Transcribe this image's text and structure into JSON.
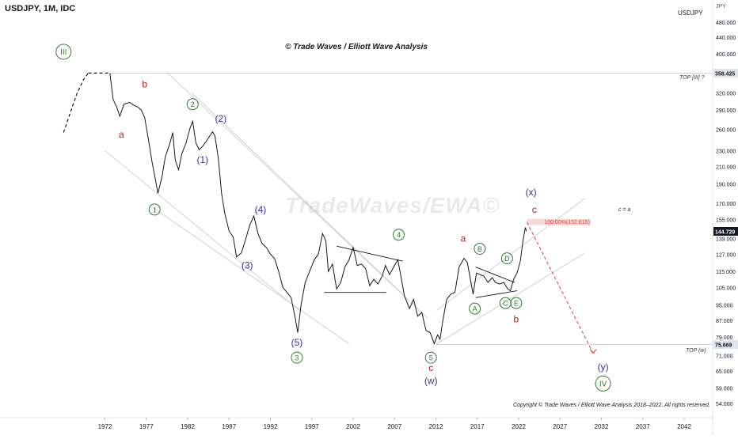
{
  "header": {
    "symbol": "USDJPY, 1M, IDC",
    "currency_short": "USDJPY",
    "currency_unit": "JPY",
    "title": "© Trade Waves / Elliott Wave Analysis",
    "watermark": "TradeWaves/EWA©",
    "copyright": "Copyright © Trade Waves / Elliott Wave Analysis 2018–2022. All rights reserved."
  },
  "annotations": {
    "top_iii": "TOP [III] ?",
    "top_w": "TOP (w)",
    "c_eq_a": "c = a",
    "fib_label": "100.00%(152.615)"
  },
  "chart_data": {
    "type": "line",
    "y_scale": "log",
    "ylim": [
      51,
      520
    ],
    "xlim": [
      1967.0,
      2047.0
    ],
    "x_ticks": [
      "1972",
      "1977",
      "1982",
      "1987",
      "1992",
      "1997",
      "2002",
      "2007",
      "2012",
      "2017",
      "2022",
      "2027",
      "2032",
      "2037",
      "2042"
    ],
    "y_ticks": [
      "480.000",
      "440.000",
      "400.000",
      "358.425",
      "320.000",
      "290.000",
      "260.000",
      "230.000",
      "210.000",
      "190.000",
      "170.000",
      "155.000",
      "144.729",
      "139.000",
      "127.000",
      "115.000",
      "105.000",
      "95.000",
      "87.000",
      "79.000",
      "75.669",
      "71.000",
      "65.000",
      "59.000",
      "54.000"
    ],
    "price_labels": [
      {
        "value": "358.425",
        "y": 358.425,
        "bg": "#e0e3eb",
        "fg": "#131722"
      },
      {
        "value": "144.729",
        "y": 144.729,
        "bg": "#131722",
        "fg": "#ffffff"
      },
      {
        "value": "75.669",
        "y": 75.669,
        "bg": "#e0e3eb",
        "fg": "#131722"
      }
    ],
    "series": [
      {
        "points": [
          [
            1967.0,
            255
          ],
          [
            1967.8,
            285
          ],
          [
            1968.6,
            318
          ],
          [
            1969.4,
            345
          ],
          [
            1970.0,
            358.425
          ]
        ],
        "style": "dashed"
      },
      {
        "points": [
          [
            1970.0,
            358.425
          ],
          [
            1972.6,
            358.425
          ]
        ],
        "style": "dashed-flat"
      },
      {
        "points": [
          [
            1972.6,
            358.425
          ],
          [
            1973.0,
            308
          ],
          [
            1973.4,
            296
          ],
          [
            1973.8,
            280
          ],
          [
            1974.3,
            300
          ],
          [
            1975.0,
            303
          ],
          [
            1975.5,
            298
          ],
          [
            1976.0,
            295
          ],
          [
            1976.4,
            290
          ],
          [
            1976.8,
            278
          ],
          [
            1977.3,
            242
          ],
          [
            1977.7,
            215
          ],
          [
            1978.1,
            195
          ],
          [
            1978.4,
            180
          ],
          [
            1978.9,
            198
          ],
          [
            1979.3,
            222
          ],
          [
            1979.8,
            238
          ],
          [
            1980.2,
            255
          ],
          [
            1980.5,
            218
          ],
          [
            1980.9,
            206
          ],
          [
            1981.3,
            226
          ],
          [
            1981.8,
            240
          ],
          [
            1982.3,
            262
          ],
          [
            1982.6,
            272
          ],
          [
            1983.0,
            240
          ],
          [
            1983.4,
            231
          ],
          [
            1983.9,
            237
          ],
          [
            1984.5,
            247
          ],
          [
            1985.0,
            256
          ],
          [
            1985.3,
            250
          ],
          [
            1985.7,
            220
          ],
          [
            1986.1,
            180
          ],
          [
            1986.5,
            160
          ],
          [
            1987.0,
            145
          ],
          [
            1987.5,
            140
          ],
          [
            1987.9,
            125
          ],
          [
            1988.5,
            128
          ],
          [
            1989.0,
            138
          ],
          [
            1989.5,
            150
          ],
          [
            1990.0,
            158
          ],
          [
            1990.5,
            143
          ],
          [
            1991.0,
            135
          ],
          [
            1991.5,
            132
          ],
          [
            1992.0,
            127
          ],
          [
            1992.5,
            124
          ],
          [
            1993.0,
            115
          ],
          [
            1993.5,
            105
          ],
          [
            1994.0,
            102
          ],
          [
            1994.5,
            99
          ],
          [
            1995.0,
            88
          ],
          [
            1995.3,
            81
          ],
          [
            1995.7,
            95
          ],
          [
            1996.2,
            108
          ],
          [
            1996.8,
            116
          ],
          [
            1997.3,
            123
          ],
          [
            1997.8,
            127
          ],
          [
            1998.3,
            143
          ],
          [
            1998.7,
            137
          ],
          [
            1999.0,
            115
          ],
          [
            1999.5,
            120
          ],
          [
            2000.0,
            104
          ],
          [
            2000.5,
            108
          ],
          [
            2001.0,
            118
          ],
          [
            2001.5,
            123
          ],
          [
            2002.0,
            132
          ],
          [
            2002.5,
            119
          ],
          [
            2003.0,
            120
          ],
          [
            2003.5,
            117
          ],
          [
            2004.0,
            106
          ],
          [
            2004.5,
            110
          ],
          [
            2005.0,
            107
          ],
          [
            2005.5,
            112
          ],
          [
            2005.9,
            119
          ],
          [
            2006.4,
            113
          ],
          [
            2006.9,
            118
          ],
          [
            2007.4,
            123
          ],
          [
            2007.8,
            111
          ],
          [
            2008.2,
            100
          ],
          [
            2008.8,
            93
          ],
          [
            2009.3,
            98
          ],
          [
            2009.8,
            89
          ],
          [
            2010.3,
            91
          ],
          [
            2010.8,
            82
          ],
          [
            2011.3,
            81
          ],
          [
            2011.8,
            76
          ],
          [
            2012.2,
            80
          ],
          [
            2012.5,
            78
          ],
          [
            2012.8,
            86
          ],
          [
            2013.3,
            98
          ],
          [
            2013.8,
            101
          ],
          [
            2014.3,
            102
          ],
          [
            2014.8,
            118
          ],
          [
            2015.4,
            124
          ],
          [
            2015.8,
            121
          ],
          [
            2016.2,
            109
          ],
          [
            2016.5,
            101
          ],
          [
            2016.9,
            114
          ],
          [
            2017.3,
            113
          ],
          [
            2017.8,
            112
          ],
          [
            2018.3,
            108
          ],
          [
            2018.8,
            111
          ],
          [
            2019.2,
            108
          ],
          [
            2019.7,
            107
          ],
          [
            2020.2,
            108
          ],
          [
            2020.7,
            104
          ],
          [
            2021.0,
            103
          ],
          [
            2021.4,
            110
          ],
          [
            2021.8,
            114
          ],
          [
            2022.2,
            122
          ],
          [
            2022.5,
            136
          ],
          [
            2022.8,
            148
          ],
          [
            2022.95,
            144.729
          ]
        ],
        "style": "price"
      },
      {
        "points": [
          [
            2023.0,
            152.615
          ],
          [
            2031.0,
            72
          ]
        ],
        "style": "projection"
      }
    ],
    "wave_labels": [
      {
        "text": "III",
        "x": 1967.0,
        "y": 405,
        "color": "#2e7d32",
        "circle": true
      },
      {
        "text": "a",
        "x": 1974.0,
        "y": 252,
        "color": "#b71c1c",
        "circle": false
      },
      {
        "text": "b",
        "x": 1976.8,
        "y": 336,
        "color": "#b71c1c",
        "circle": false
      },
      {
        "text": "1",
        "x": 1978.0,
        "y": 164,
        "color": "#2e7d32",
        "circle": true
      },
      {
        "text": "2",
        "x": 1982.6,
        "y": 300,
        "color": "#2e7d32",
        "circle": true
      },
      {
        "text": "(1)",
        "x": 1983.8,
        "y": 218,
        "color": "#3f2a9c",
        "circle": false
      },
      {
        "text": "(2)",
        "x": 1986.0,
        "y": 276,
        "color": "#3f2a9c",
        "circle": false
      },
      {
        "text": "(3)",
        "x": 1989.2,
        "y": 119,
        "color": "#3f2a9c",
        "circle": false
      },
      {
        "text": "(4)",
        "x": 1990.8,
        "y": 164,
        "color": "#3f2a9c",
        "circle": false
      },
      {
        "text": "(5)",
        "x": 1995.2,
        "y": 76.5,
        "color": "#3f2a9c",
        "circle": false
      },
      {
        "text": "3",
        "x": 1995.2,
        "y": 70.2,
        "color": "#2e7d32",
        "circle": true
      },
      {
        "text": "4",
        "x": 2007.5,
        "y": 142,
        "color": "#2e7d32",
        "circle": true
      },
      {
        "text": "5",
        "x": 2011.4,
        "y": 70.2,
        "color": "#2e7d32",
        "circle": true
      },
      {
        "text": "c",
        "x": 2011.4,
        "y": 66.2,
        "color": "#b71c1c",
        "circle": false
      },
      {
        "text": "(w)",
        "x": 2011.4,
        "y": 61.5,
        "color": "#3f2a9c",
        "circle": false
      },
      {
        "text": "a",
        "x": 2015.3,
        "y": 139,
        "color": "#b71c1c",
        "circle": false
      },
      {
        "text": "A",
        "x": 2016.7,
        "y": 93,
        "color": "#2e7d32",
        "circle": true
      },
      {
        "text": "B",
        "x": 2017.3,
        "y": 131,
        "color": "#2e7d32",
        "circle": true
      },
      {
        "text": "C",
        "x": 2020.4,
        "y": 96,
        "color": "#2e7d32",
        "circle": true
      },
      {
        "text": "D",
        "x": 2020.6,
        "y": 124,
        "color": "#2e7d32",
        "circle": true
      },
      {
        "text": "E",
        "x": 2021.7,
        "y": 96,
        "color": "#2e7d32",
        "circle": true
      },
      {
        "text": "b",
        "x": 2021.7,
        "y": 87.5,
        "color": "#b71c1c",
        "circle": false
      },
      {
        "text": "(x)",
        "x": 2023.5,
        "y": 181,
        "color": "#3f2a9c",
        "circle": false
      },
      {
        "text": "c",
        "x": 2023.9,
        "y": 164,
        "color": "#b71c1c",
        "circle": false
      },
      {
        "text": "(y)",
        "x": 2032.2,
        "y": 66.5,
        "color": "#3f2a9c",
        "circle": false
      },
      {
        "text": "IV",
        "x": 2032.2,
        "y": 60.5,
        "color": "#2e7d32",
        "circle": true
      }
    ],
    "horizontal_lines": [
      {
        "y": 358.425,
        "x_from": 1972.6,
        "label": "TOP [III] ?"
      },
      {
        "y": 75.669,
        "x_from": 2012.1,
        "label": "TOP (w)"
      }
    ],
    "channels": [
      {
        "from": [
          1978.0,
          165
        ],
        "to": [
          2001.5,
          76
        ]
      },
      {
        "from": [
          1979.5,
          360
        ],
        "to": [
          2011.0,
          88
        ]
      },
      {
        "from": [
          1982.5,
          320
        ],
        "to": [
          2008.2,
          100
        ]
      },
      {
        "from": [
          1972.0,
          230
        ],
        "to": [
          1995.5,
          92
        ]
      },
      {
        "from": [
          2012.0,
          75.669
        ],
        "to": [
          2030.0,
          128
        ]
      },
      {
        "from": [
          2012.1,
          92
        ],
        "to": [
          2030.0,
          175
        ]
      }
    ],
    "triangles": [
      {
        "upper": [
          [
            2000.0,
            133
          ],
          [
            2008.0,
            122
          ]
        ],
        "lower": [
          [
            1998.5,
            102
          ],
          [
            2006.0,
            102
          ]
        ]
      },
      {
        "upper": [
          [
            2016.8,
            118
          ],
          [
            2021.5,
            108
          ]
        ],
        "lower": [
          [
            2016.8,
            99
          ],
          [
            2021.8,
            103
          ]
        ]
      }
    ],
    "fib_box": {
      "x_from": 2023.0,
      "x_to": 2030.7,
      "y_low": 150,
      "y_high": 155.5,
      "label": "100.00%(152.615)"
    }
  }
}
